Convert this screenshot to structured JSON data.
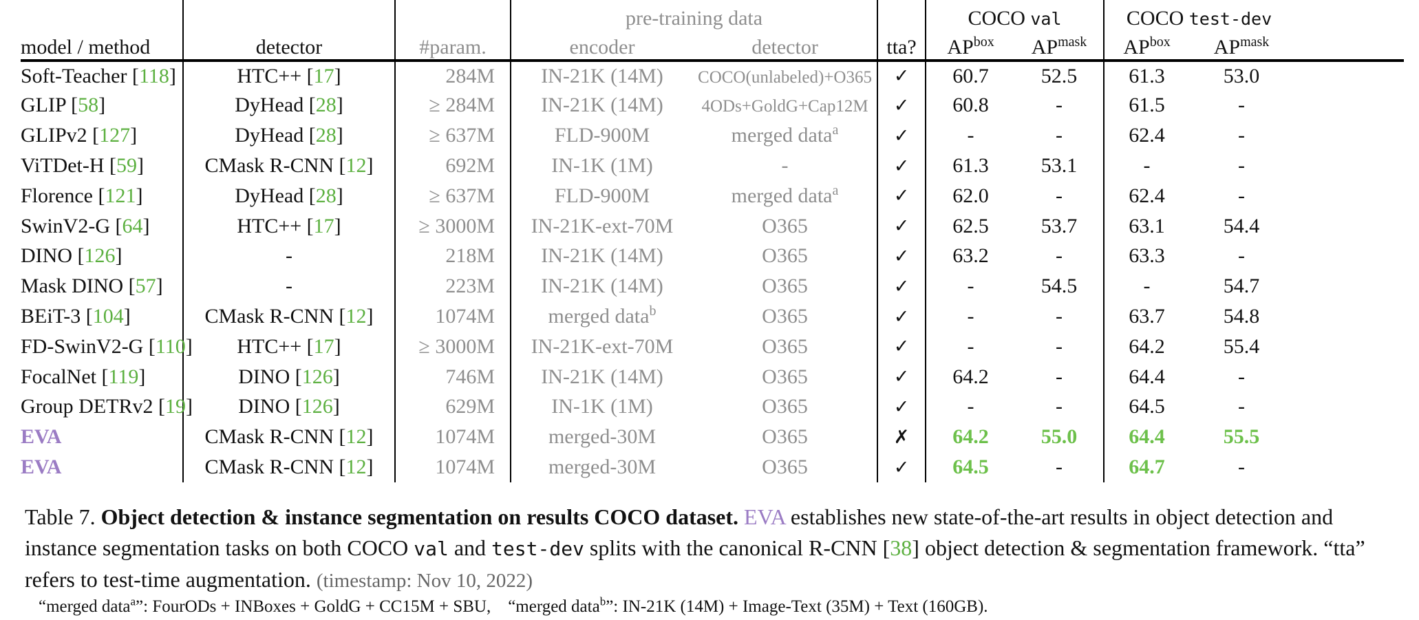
{
  "table": {
    "group_headers": {
      "pretraining": "pre-training data",
      "coco_val_prefix": "COCO ",
      "coco_val_code": "val",
      "coco_testdev_prefix": "COCO ",
      "coco_testdev_code": "test-dev"
    },
    "columns": {
      "model": "model / method",
      "detector": "detector",
      "params": "#param.",
      "encoder": "encoder",
      "pt_detector": "detector",
      "tta": "tta?",
      "ap": "AP",
      "box_sup": "box",
      "mask_sup": "mask"
    },
    "rows": [
      {
        "name": "Soft-Teacher",
        "name_ref": "118",
        "det": "HTC++",
        "det_ref": "17",
        "params": "284M",
        "encoder": "IN-21K (14M)",
        "pt_det": "COCO(unlabeled)+O365",
        "tta": "✓",
        "val_box": "60.7",
        "val_mask": "52.5",
        "td_box": "61.3",
        "td_mask": "53.0"
      },
      {
        "name": "GLIP",
        "name_ref": "58",
        "det": "DyHead",
        "det_ref": "28",
        "params": "≥ 284M",
        "encoder": "IN-21K (14M)",
        "pt_det": "4ODs+GoldG+Cap12M",
        "tta": "✓",
        "val_box": "60.8",
        "val_mask": "-",
        "td_box": "61.5",
        "td_mask": "-"
      },
      {
        "name": "GLIPv2",
        "name_ref": "127",
        "det": "DyHead",
        "det_ref": "28",
        "params": "≥ 637M",
        "encoder": "FLD-900M",
        "pt_det": "merged data",
        "pt_det_sup": "a",
        "tta": "✓",
        "val_box": "-",
        "val_mask": "-",
        "td_box": "62.4",
        "td_mask": "-"
      },
      {
        "name": "ViTDet-H",
        "name_ref": "59",
        "det": "CMask R-CNN",
        "det_ref": "12",
        "params": "692M",
        "encoder": "IN-1K (1M)",
        "pt_det": "-",
        "tta": "✓",
        "val_box": "61.3",
        "val_mask": "53.1",
        "td_box": "-",
        "td_mask": "-"
      },
      {
        "name": "Florence",
        "name_ref": "121",
        "det": "DyHead",
        "det_ref": "28",
        "params": "≥ 637M",
        "encoder": "FLD-900M",
        "pt_det": "merged data",
        "pt_det_sup": "a",
        "tta": "✓",
        "val_box": "62.0",
        "val_mask": "-",
        "td_box": "62.4",
        "td_mask": "-"
      },
      {
        "name": "SwinV2-G",
        "name_ref": "64",
        "det": "HTC++",
        "det_ref": "17",
        "params": "≥ 3000M",
        "encoder": "IN-21K-ext-70M",
        "pt_det": "O365",
        "tta": "✓",
        "val_box": "62.5",
        "val_mask": "53.7",
        "td_box": "63.1",
        "td_mask": "54.4"
      },
      {
        "name": "DINO",
        "name_ref": "126",
        "det": "-",
        "det_ref": "",
        "params": "218M",
        "encoder": "IN-21K (14M)",
        "pt_det": "O365",
        "tta": "✓",
        "val_box": "63.2",
        "val_mask": "-",
        "td_box": "63.3",
        "td_mask": "-"
      },
      {
        "name": "Mask DINO",
        "name_ref": "57",
        "det": "-",
        "det_ref": "",
        "params": "223M",
        "encoder": "IN-21K (14M)",
        "pt_det": "O365",
        "tta": "✓",
        "val_box": "-",
        "val_mask": "54.5",
        "td_box": "-",
        "td_mask": "54.7"
      },
      {
        "name": "BEiT-3",
        "name_ref": "104",
        "det": "CMask R-CNN",
        "det_ref": "12",
        "params": "1074M",
        "encoder": "merged data",
        "encoder_sup": "b",
        "pt_det": "O365",
        "tta": "✓",
        "val_box": "-",
        "val_mask": "-",
        "td_box": "63.7",
        "td_mask": "54.8"
      },
      {
        "name": "FD-SwinV2-G",
        "name_ref": "110",
        "det": "HTC++",
        "det_ref": "17",
        "params": "≥ 3000M",
        "encoder": "IN-21K-ext-70M",
        "pt_det": "O365",
        "tta": "✓",
        "val_box": "-",
        "val_mask": "-",
        "td_box": "64.2",
        "td_mask": "55.4"
      },
      {
        "name": "FocalNet",
        "name_ref": "119",
        "det": "DINO",
        "det_ref": "126",
        "params": "746M",
        "encoder": "IN-21K (14M)",
        "pt_det": "O365",
        "tta": "✓",
        "val_box": "64.2",
        "val_mask": "-",
        "td_box": "64.4",
        "td_mask": "-"
      },
      {
        "name": "Group DETRv2",
        "name_ref": "19",
        "det": "DINO",
        "det_ref": "126",
        "params": "629M",
        "encoder": "IN-1K (1M)",
        "pt_det": "O365",
        "tta": "✓",
        "val_box": "-",
        "val_mask": "-",
        "td_box": "64.5",
        "td_mask": "-"
      },
      {
        "name": "EVA",
        "name_ref": "",
        "det": "CMask R-CNN",
        "det_ref": "12",
        "params": "1074M",
        "encoder": "merged-30M",
        "pt_det": "O365",
        "tta": "✗",
        "val_box": "64.2",
        "val_mask": "55.0",
        "td_box": "64.4",
        "td_mask": "55.5",
        "eva": true
      },
      {
        "name": "EVA",
        "name_ref": "",
        "det": "CMask R-CNN",
        "det_ref": "12",
        "params": "1074M",
        "encoder": "merged-30M",
        "pt_det": "O365",
        "tta": "✓",
        "val_box": "64.5",
        "val_mask": "-",
        "td_box": "64.7",
        "td_mask": "-",
        "eva": true
      }
    ]
  },
  "caption": {
    "label": "Table 7.",
    "bold": "Object detection & instance segmentation on results COCO dataset.",
    "eva": "EVA",
    "t1": " establishes new state-of-the-art results in object detection and instance segmentation tasks on both COCO ",
    "code1": "val",
    "t2": " and ",
    "code2": "test-dev",
    "t3": " splits with the canonical R-CNN [",
    "ref": "38",
    "t4": "] object detection & segmentation framework. “tta” refers to test-time augmentation. ",
    "timestamp": "(timestamp: Nov 10, 2022)"
  },
  "footnote": {
    "a_pre": "“merged data",
    "a_sup": "a",
    "a_post": "”: FourODs + INBoxes + GoldG + CC15M + SBU,",
    "b_pre": "“merged data",
    "b_sup": "b",
    "b_post": "”: IN-21K (14M) + Image-Text (35M) + Text (160GB)."
  },
  "colors": {
    "citation_green": "#5cb040",
    "eva_purple": "#9b7cc4",
    "best_green": "#6cc04a",
    "pretraining_grey": "#8e8e8e"
  }
}
